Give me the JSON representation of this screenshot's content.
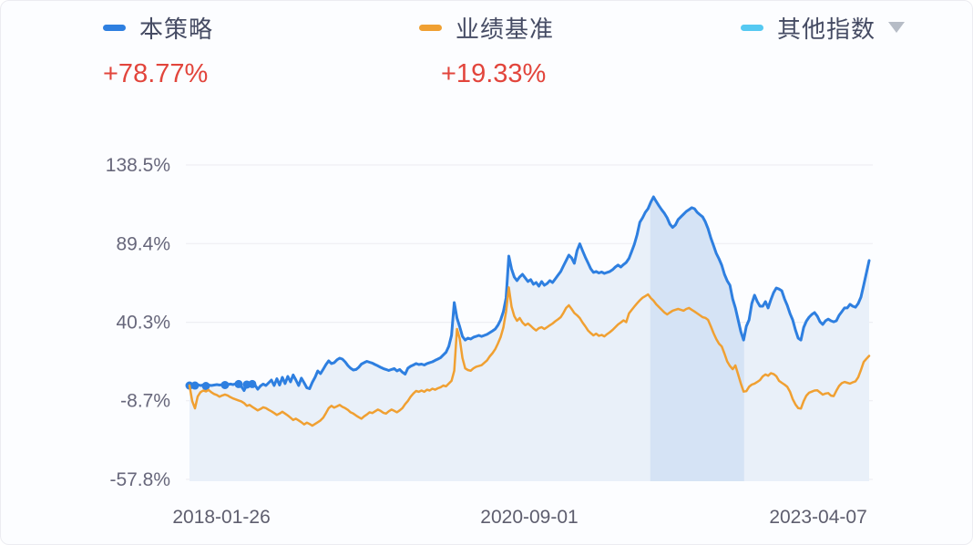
{
  "page": {
    "background": "#fcfdff"
  },
  "legend": {
    "value_color": "#e2453c",
    "items": [
      {
        "label": "本策略",
        "value": "+78.77%",
        "color": "#2e7fe0"
      },
      {
        "label": "业绩基准",
        "value": "+19.33%",
        "color": "#f0a032"
      },
      {
        "label": "其他指数",
        "value": "",
        "color": "#55c9f2",
        "dropdown": true
      }
    ]
  },
  "chart_data": {
    "type": "line",
    "title": "",
    "xlabel": "",
    "ylabel": "",
    "legend_position": "top",
    "grid": true,
    "grid_color": "#eeeef3",
    "area_fill": "#e9f0f9",
    "highlight_band": {
      "t0": 0.678,
      "t1": 0.816,
      "color": "#d5e3f5"
    },
    "ylim": [
      -57.8,
      148.5
    ],
    "y_ticks": [
      {
        "label": "138.5%",
        "value": 138.5
      },
      {
        "label": "89.4%",
        "value": 89.4
      },
      {
        "label": "40.3%",
        "value": 40.3
      },
      {
        "label": "-8.7%",
        "value": -8.7
      },
      {
        "label": "-57.8%",
        "value": -57.8
      }
    ],
    "x_ticks": [
      {
        "label": "2018-01-26",
        "t": 0.047
      },
      {
        "label": "2020-09-01",
        "t": 0.5
      },
      {
        "label": "2023-04-07",
        "t": 0.925
      }
    ],
    "series": [
      {
        "name": "本策略",
        "final_value": "+78.77%",
        "color": "#2e7fe0",
        "width": 3,
        "marker_indices": [
          0,
          2,
          6,
          13,
          18,
          21,
          23
        ],
        "values": [
          0.8,
          1.1,
          0.8,
          1.4,
          0.8,
          1.1,
          0.5,
          1.1,
          0.8,
          1.1,
          1.4,
          1.1,
          1.4,
          1.1,
          1.4,
          1.7,
          1.4,
          2.0,
          1.7,
          0.3,
          -2.3,
          1.4,
          2.0,
          1.7,
          1.1,
          -1.5,
          0.5,
          1.7,
          0.8,
          2.5,
          4.2,
          0.8,
          5.1,
          1.1,
          5.9,
          2.0,
          6.5,
          3.1,
          7.4,
          4.2,
          0.8,
          5.4,
          2.5,
          -0.6,
          -1.2,
          2.8,
          5.9,
          9.9,
          8.2,
          11.0,
          13.9,
          16.2,
          14.5,
          15.1,
          16.8,
          17.9,
          17.3,
          15.6,
          13.3,
          11.6,
          10.5,
          10.8,
          12.2,
          14.2,
          15.1,
          15.9,
          15.3,
          14.8,
          13.9,
          13.1,
          12.2,
          11.4,
          10.8,
          10.2,
          10.8,
          11.4,
          9.9,
          10.8,
          9.1,
          7.9,
          11.6,
          12.8,
          13.6,
          14.5,
          13.9,
          14.2,
          13.6,
          14.5,
          15.1,
          15.6,
          16.5,
          17.3,
          18.2,
          19.9,
          21.6,
          25.3,
          32.1,
          52.6,
          42.9,
          37.5,
          31.5,
          29.2,
          30.4,
          29.8,
          30.9,
          31.5,
          32.1,
          31.5,
          32.1,
          32.7,
          33.8,
          34.9,
          36.1,
          38.4,
          41.8,
          46.9,
          55.4,
          81.6,
          73.6,
          68.5,
          66.3,
          68.6,
          70.2,
          68.0,
          65.7,
          66.9,
          64.0,
          65.1,
          62.8,
          65.7,
          63.4,
          64.5,
          66.3,
          65.1,
          67.4,
          69.7,
          72.0,
          75.4,
          78.8,
          82.2,
          80.5,
          77.1,
          85.0,
          89.3,
          85.0,
          81.0,
          77.4,
          73.7,
          71.4,
          72.0,
          71.1,
          71.7,
          70.8,
          71.4,
          72.0,
          73.1,
          74.8,
          76.0,
          74.8,
          76.3,
          77.7,
          80.2,
          84.4,
          89.0,
          95.0,
          102.7,
          105.5,
          108.9,
          111.2,
          115.2,
          118.6,
          115.7,
          113.0,
          110.5,
          108.3,
          105.5,
          101.5,
          99.5,
          101.0,
          104.4,
          106.1,
          107.8,
          109.5,
          110.6,
          111.8,
          111.2,
          108.9,
          107.5,
          106.1,
          103.0,
          98.7,
          93.0,
          88.2,
          83.3,
          79.9,
          75.9,
          70.2,
          66.2,
          63.4,
          54.9,
          49.2,
          41.8,
          34.4,
          29.2,
          37.8,
          41.8,
          52.0,
          57.2,
          53.2,
          50.3,
          50.3,
          53.2,
          49.2,
          54.3,
          58.8,
          61.7,
          61.0,
          60.0,
          54.9,
          50.9,
          45.8,
          41.8,
          35.5,
          30.4,
          29.2,
          37.0,
          41.0,
          43.5,
          45.2,
          46.3,
          44.1,
          40.6,
          38.9,
          41.2,
          42.3,
          41.2,
          40.6,
          41.2,
          44.6,
          46.9,
          49.2,
          49.2,
          51.5,
          50.3,
          49.7,
          52.0,
          56.0,
          63.4,
          71.1,
          78.8
        ]
      },
      {
        "name": "业绩基准",
        "final_value": "+19.33%",
        "color": "#f0a032",
        "width": 2.5,
        "marker_indices": [],
        "values": [
          0.8,
          -9.0,
          -13.5,
          -6.0,
          -3.4,
          -2.3,
          -2.9,
          -2.0,
          -3.4,
          -4.5,
          -5.1,
          -6.2,
          -5.4,
          -4.8,
          -5.4,
          -6.5,
          -7.3,
          -7.9,
          -8.5,
          -9.1,
          -10.2,
          -11.9,
          -11.3,
          -12.5,
          -13.6,
          -14.7,
          -13.9,
          -12.8,
          -13.3,
          -14.4,
          -15.3,
          -16.4,
          -17.6,
          -16.7,
          -15.6,
          -16.7,
          -17.9,
          -19.3,
          -20.7,
          -19.9,
          -21.0,
          -22.1,
          -23.5,
          -22.4,
          -23.2,
          -24.3,
          -23.2,
          -22.1,
          -21.0,
          -19.3,
          -16.4,
          -13.3,
          -11.9,
          -13.0,
          -12.2,
          -11.3,
          -12.5,
          -13.3,
          -14.4,
          -15.9,
          -16.7,
          -17.9,
          -19.0,
          -19.9,
          -18.4,
          -17.3,
          -15.9,
          -16.4,
          -15.3,
          -14.2,
          -15.0,
          -16.2,
          -16.7,
          -15.3,
          -14.2,
          -15.0,
          -15.9,
          -14.7,
          -13.3,
          -10.8,
          -8.8,
          -6.2,
          -4.2,
          -2.6,
          -3.1,
          -2.3,
          -3.1,
          -1.8,
          -2.3,
          -1.2,
          -1.8,
          -0.9,
          -0.3,
          0.8,
          0.3,
          2.0,
          3.7,
          10.0,
          36.1,
          30.0,
          18.0,
          11.5,
          10.5,
          10.0,
          11.5,
          12.5,
          13.0,
          13.5,
          15.0,
          16.5,
          19.0,
          21.0,
          23.5,
          27.0,
          31.0,
          37.0,
          47.0,
          62.0,
          50.0,
          44.1,
          41.2,
          42.9,
          40.1,
          38.4,
          39.5,
          38.1,
          36.4,
          35.2,
          36.6,
          37.2,
          36.1,
          37.2,
          38.4,
          39.5,
          40.9,
          42.1,
          43.5,
          46.1,
          49.2,
          50.9,
          48.6,
          46.1,
          44.7,
          42.9,
          40.1,
          37.8,
          35.2,
          33.5,
          32.1,
          33.2,
          31.8,
          32.4,
          31.5,
          32.9,
          34.1,
          35.5,
          37.2,
          38.9,
          40.1,
          41.5,
          40.4,
          45.8,
          48.0,
          50.1,
          52.1,
          54.0,
          55.6,
          56.6,
          57.7,
          55.4,
          53.8,
          51.5,
          49.8,
          48.1,
          46.4,
          45.2,
          46.4,
          47.5,
          48.1,
          48.6,
          48.1,
          47.5,
          48.6,
          49.2,
          48.1,
          47.0,
          45.8,
          44.7,
          43.5,
          43.0,
          41.8,
          37.8,
          33.5,
          29.8,
          26.9,
          25.2,
          20.7,
          15.8,
          13.0,
          11.0,
          13.3,
          7.7,
          2.0,
          -3.0,
          -2.7,
          0.0,
          1.4,
          2.0,
          3.0,
          4.2,
          6.5,
          7.7,
          6.9,
          8.5,
          8.0,
          6.6,
          3.7,
          2.5,
          1.4,
          0.0,
          -3.0,
          -7.7,
          -11.0,
          -13.3,
          -13.6,
          -9.0,
          -5.5,
          -3.7,
          -3.0,
          -2.3,
          -2.2,
          -3.5,
          -4.9,
          -4.2,
          -3.9,
          -5.5,
          -5.8,
          -2.5,
          0.5,
          2.3,
          3.0,
          2.5,
          2.0,
          2.8,
          3.4,
          6.0,
          10.5,
          15.5,
          17.5,
          19.3
        ]
      }
    ]
  }
}
